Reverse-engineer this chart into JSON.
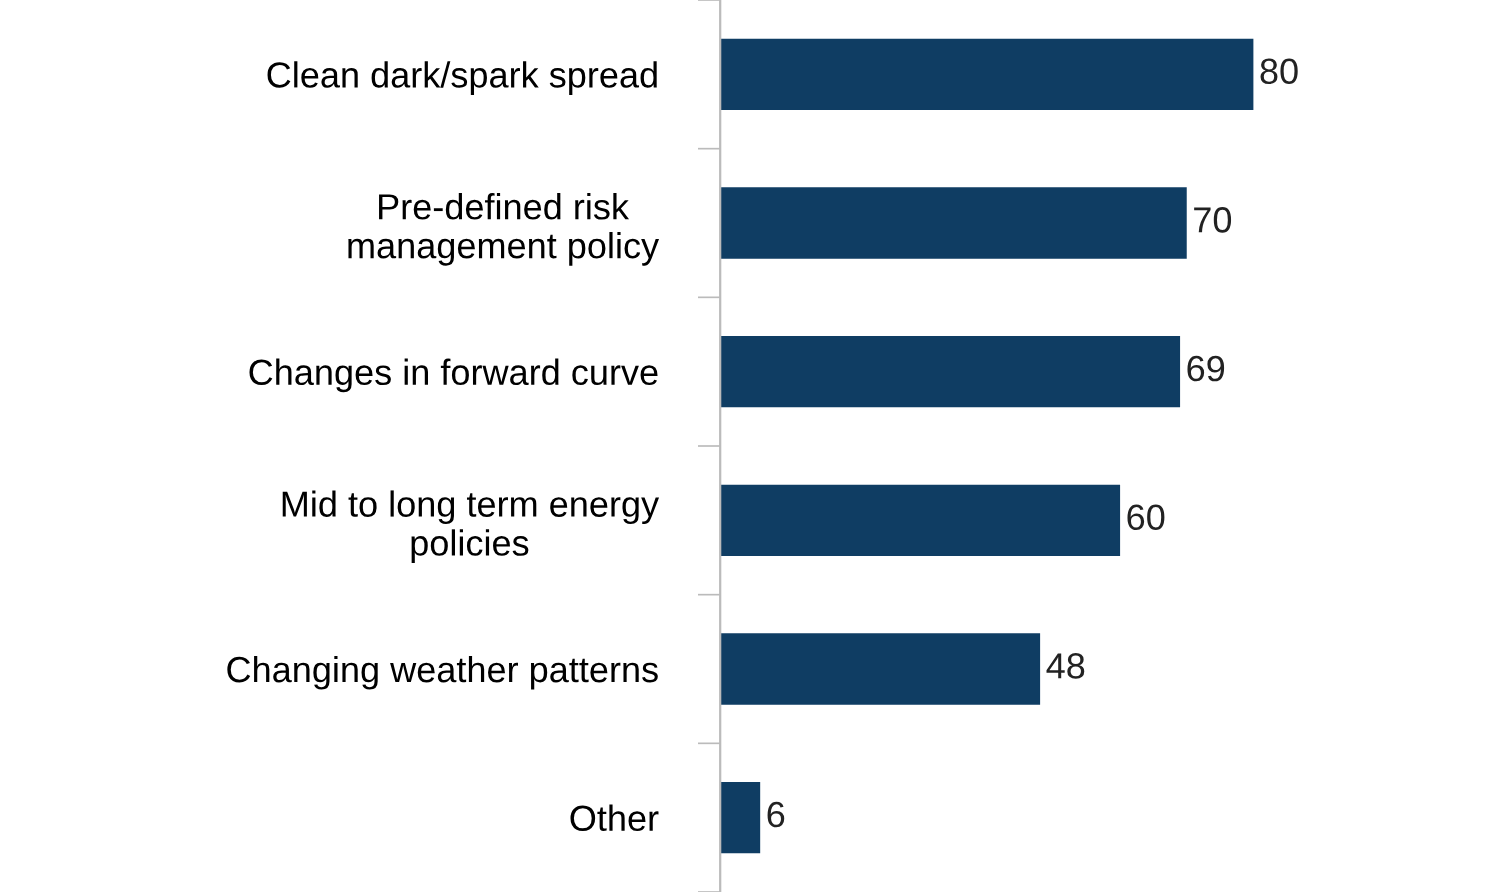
{
  "chart_data": {
    "type": "bar",
    "orientation": "horizontal",
    "categories": [
      "Clean dark/spark spread",
      "Pre-defined risk\nmanagement policy",
      "Changes in forward curve",
      "Mid to long term energy\npolicies",
      "Changing weather patterns",
      "Other"
    ],
    "values": [
      80,
      70,
      69,
      60,
      48,
      6
    ],
    "color": "#0f3d63",
    "data_labels": true
  }
}
